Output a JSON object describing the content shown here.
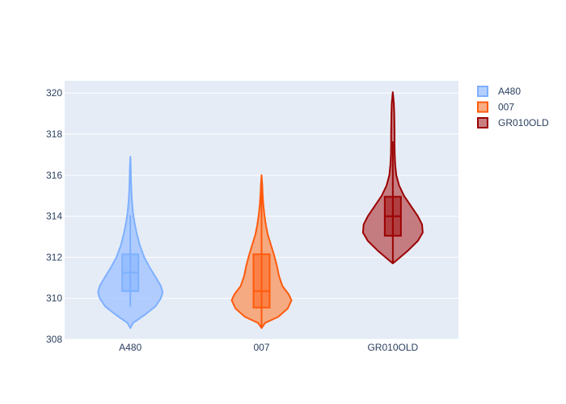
{
  "chart_data": {
    "type": "violin",
    "title": "",
    "xlabel": "",
    "ylabel": "",
    "categories": [
      "A480",
      "007",
      "GR010OLD"
    ],
    "ylim": [
      308,
      320.6
    ],
    "yticks": [
      308,
      310,
      312,
      314,
      316,
      318,
      320
    ],
    "grid": true,
    "legend_position": "top-right",
    "plot_background": "#e5ecf6",
    "series": [
      {
        "name": "A480",
        "color": "#7eb0ff",
        "fill": "#a7c7ff",
        "box": {
          "q1": 310.35,
          "median": 311.25,
          "q3": 312.15,
          "lower_whisker": 309.6,
          "upper_whisker": 314.05
        },
        "kde_min": 308.55,
        "kde_max": 316.9,
        "density": [
          [
            308.55,
            0.0
          ],
          [
            308.8,
            0.08
          ],
          [
            309.2,
            0.42
          ],
          [
            309.6,
            0.72
          ],
          [
            310.0,
            0.88
          ],
          [
            310.3,
            0.93
          ],
          [
            310.6,
            0.88
          ],
          [
            311.0,
            0.74
          ],
          [
            311.5,
            0.56
          ],
          [
            312.0,
            0.4
          ],
          [
            312.6,
            0.27
          ],
          [
            313.2,
            0.18
          ],
          [
            313.7,
            0.12
          ],
          [
            314.2,
            0.075
          ],
          [
            314.8,
            0.045
          ],
          [
            315.3,
            0.03
          ],
          [
            315.8,
            0.02
          ],
          [
            316.3,
            0.015
          ],
          [
            316.9,
            0.0
          ]
        ]
      },
      {
        "name": "007",
        "color": "#ff5a0d",
        "fill": "#f89f6d",
        "box": {
          "q1": 309.55,
          "median": 310.35,
          "q3": 312.15,
          "lower_whisker": 308.6,
          "upper_whisker": 315.5
        },
        "kde_min": 308.55,
        "kde_max": 316.0,
        "density": [
          [
            308.55,
            0.0
          ],
          [
            308.8,
            0.1
          ],
          [
            309.1,
            0.48
          ],
          [
            309.5,
            0.75
          ],
          [
            309.9,
            0.86
          ],
          [
            310.2,
            0.78
          ],
          [
            310.6,
            0.6
          ],
          [
            311.1,
            0.5
          ],
          [
            311.6,
            0.44
          ],
          [
            312.1,
            0.36
          ],
          [
            312.6,
            0.27
          ],
          [
            313.1,
            0.18
          ],
          [
            313.6,
            0.12
          ],
          [
            314.1,
            0.08
          ],
          [
            314.6,
            0.05
          ],
          [
            315.1,
            0.03
          ],
          [
            315.5,
            0.02
          ],
          [
            316.0,
            0.0
          ]
        ]
      },
      {
        "name": "GR010OLD",
        "color": "#9b0000",
        "fill": "#c0696c",
        "box": {
          "q1": 313.05,
          "median": 314.0,
          "q3": 314.95,
          "lower_whisker": 311.7,
          "upper_whisker": 317.65
        },
        "kde_min": 311.7,
        "kde_max": 320.05,
        "density": [
          [
            311.7,
            0.0
          ],
          [
            311.9,
            0.14
          ],
          [
            312.3,
            0.42
          ],
          [
            312.8,
            0.72
          ],
          [
            313.2,
            0.86
          ],
          [
            313.6,
            0.84
          ],
          [
            314.0,
            0.72
          ],
          [
            314.5,
            0.52
          ],
          [
            315.0,
            0.32
          ],
          [
            315.5,
            0.18
          ],
          [
            316.0,
            0.1
          ],
          [
            316.5,
            0.07
          ],
          [
            317.0,
            0.055
          ],
          [
            317.5,
            0.05
          ],
          [
            318.0,
            0.05
          ],
          [
            318.5,
            0.045
          ],
          [
            319.0,
            0.04
          ],
          [
            319.5,
            0.03
          ],
          [
            320.05,
            0.0
          ]
        ]
      }
    ]
  }
}
